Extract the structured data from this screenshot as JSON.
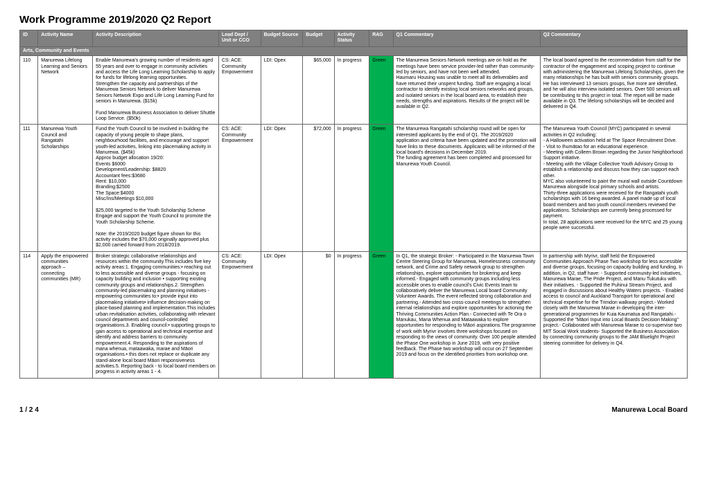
{
  "page": {
    "title": "Work Programme 2019/2020 Q2 Report",
    "page_num": "1 / 2 4",
    "board": "Manurewa Local Board"
  },
  "headers": {
    "id": "ID",
    "name": "Activity Name",
    "desc": "Activity Description",
    "lead": "Lead Dept / Unit or CCO",
    "bsrc": "Budget Source",
    "budget": "Budget",
    "status": "Activity Status",
    "rag": "RAG",
    "q1": "Q1 Commentary",
    "q2": "Q2 Commentary"
  },
  "section": "Arts, Community and Events",
  "rows": [
    {
      "id": "110",
      "name": "Manurewa Lifelong Learning and Seniors Network",
      "desc": "Enable Manurewa's growing number of residents aged 55 years and over to engage in community activities and access the Life Long Learning Scholarship to apply for funds for lifelong learning opportunities.\nStrengthen the capacity and partnerships of the Manurewa Seniors Network to deliver Manurewa Seniors Network Expo and Life Long Learning Fund for seniors in Manurewa. ($15k)\n\nFund Manurewa Business Association to deliver Shuttle Loop Service.  ($50k)",
      "lead": "CS: ACE: Community Empowerment",
      "bsrc": "LDI: Opex",
      "budget": "$65,000",
      "status": "In progress",
      "rag": "Green",
      "q1": "The Manurewa Seniors Network meetings are on hold as the meetings have been service provider-led rather than community-led by seniors, and have not been well attended.\nHaumaru Housing was unable to meet all its deliverables and have returned their unspent funding. Staff are engaging a local contractor to identify existing local seniors networks and groups, and isolated seniors in the local board area, to establish their needs, strengths and aspirations. Results of the project will be available in Q2.",
      "q2": "The local board agreed to the recommendation from staff for the contractor of the engagement and scoping project to continue with administering the Manurewa Lifelong Scholarships, given the many relationships he has built with seniors community groups. He has interviewed 13 seniors groups, five more are identified, and he will also interview isolated seniors. Over 500 seniors will be contributing to this project in total. The report will be made available in Q3. The lifelong scholarships will be decided and delivered in Q4."
    },
    {
      "id": "111",
      "name": "Manurewa Youth Council and Rangatahi Scholarships",
      "desc": "Fund the Youth Council to be involved in building the capacity of young people to shape plans, neighbourhood facilities, and encourage and support youth-led activities, linking into placemaking activity in Manurewa.  ($45k)\nApprox budget allocation 19/20:\nEvents $6000\nDevelopment/Leadership: $8820\nAccountant fees:$3680\nRent: $10,000\nBranding:$2500\nThe Space:$4000\nMisc/Ins/Meetings $10,000\n\n$25,000 targeted to the Youth Scholarship Scheme\nEngage and support the Youth Council to promote the Youth Scholarship Scheme.\n\nNote: the 2019/2020 budget figure shown for this activity includes the $70,000 originally approved plus $2,000 carried forward from 2018/2019.",
      "lead": "CS: ACE: Community Empowerment",
      "bsrc": "LDI: Opex",
      "budget": "$72,000",
      "status": "In progress",
      "rag": "Green",
      "q1": "The Manurewa Rangatahi scholarship round will be open for interested applicants by the end of Q1. The 2019/2020 application and criteria have been updated and the promotion will have links to these documents.  Applicants will be informed of the local board's decisions in December 2019.\nThe funding agreement has been completed and processed for Manurewa Youth Council.",
      "q2": "The Manurewa Youth Council (MYC) participated in several activities in Q2 including:\n- A Halloween activation held at The Space Recruitment Drive.\n- Visit to Ihumātao for an educational experience.\n- Meeting with Colleen Brown regarding the Junior Neighborhood Support initiative.\n- Meeting with the Village Collective Youth Advisory Group to establish a relationship and discuss how they can support each other.\nMYC also volunteered to paint the mural wall outside Countdown Manurewa alongside local primary schools and artists.\nThirty-three applications were received for the Rangatahi youth scholarships with 16 being awarded. A panel made up of local board members and two youth council members reviewed the applications. Scholarships are currently being processed for payment.\nIn total, 28 applications were received for the MYC and 25 young people were successful."
    },
    {
      "id": "114",
      "name": "Apply the empowered communities approach – connecting communities (MR)",
      "desc": "Broker strategic collaborative relationships and resources within the community.This includes five key activity areas:1. Engaging communities:• reaching out to less accessible and diverse groups - focusing on capacity building and inclusion • supporting existing community groups and relationships.2. Strengthen community-led placemaking and planning initiatives - empowering communities to:• provide input into placemaking initiatives• influence decision-making on place-based planning and implementation.This includes urban revitalisation activities, collaborating with relevant council departments and council-controlled organisations.3. Enabling council:• supporting groups to gain access to operational and technical expertise and identify and address barriers to community empowerment.4. Responding to the aspirations of mana whenua, mataawaka, marae and Māori organisations.• this does not replace or duplicate any stand-alone local board Māori responsiveness activities.5. Reporting back - to local board members on progress in activity areas 1 - 4.",
      "lead": "CS: ACE: Community Empowerment",
      "bsrc": "LDI: Opex",
      "budget": "$0",
      "status": "In progress",
      "rag": "Green",
      "q1": "In Q1, the strategic Broker: - Participated in the Manurewa Town Centre Steering Group for Manurewa, Homelessness community network, and Crime and Safety network group to strengthen relationships, explore opportunities for brokering and keep informed.- Engaged with community groups including less accessible ones to enable council's Civic Events team to collaboratively deliver the Manurewa Local board Community Volunteer Awards. The event reflected strong collaboration and partnering.- Attended two cross-council meetings to strengthen internal relationships and explore opportunities for actioning the Thriving Communities Action Plan.- Connected with Te Ora o Manukau, Mana Whenua and Mataawaka to explore opportunities for responding to Māori aspirations.The programme of work with Myrivr involves three workshops focused on responding to the views of community. Over 100 people attended the Phase One workshop in June 2019, with very positive feedback. The Phase two workshop will occur on 27 September 2019 and focus on the identified priorities from workshop one.",
      "q2": "In partnership with Myrivr, staff held the Empowered Communities Approach Phase Two workshop for less accessible and diverse groups, focusing on capacity building and funding. In addition, in Q2, staff have: - Supported community-led initiatives, Manurewa Marae, The Pride Project, and Manu Tukutuku with their initiatives. - Supported the Puhinui Stream Project, and engaged in discussions about Healthy Waters projects. - Enabled access to council and Auckland Transport for operational and technical expertise for the Trimdon walkway project.- Worked closely with the Manurewa Marae in developing the inter-generational programmes for Kuia Kaumatua and Rangatahi.- Supported the \"Māori Input into Local Boards Decision Making\" project.- Collaborated with Manurewa Marae to co-supervise two MIT Social Work students- Supported the Business Association by connecting community groups to the JAM Bluelight Project steering committee for delivery in Q4."
    }
  ]
}
